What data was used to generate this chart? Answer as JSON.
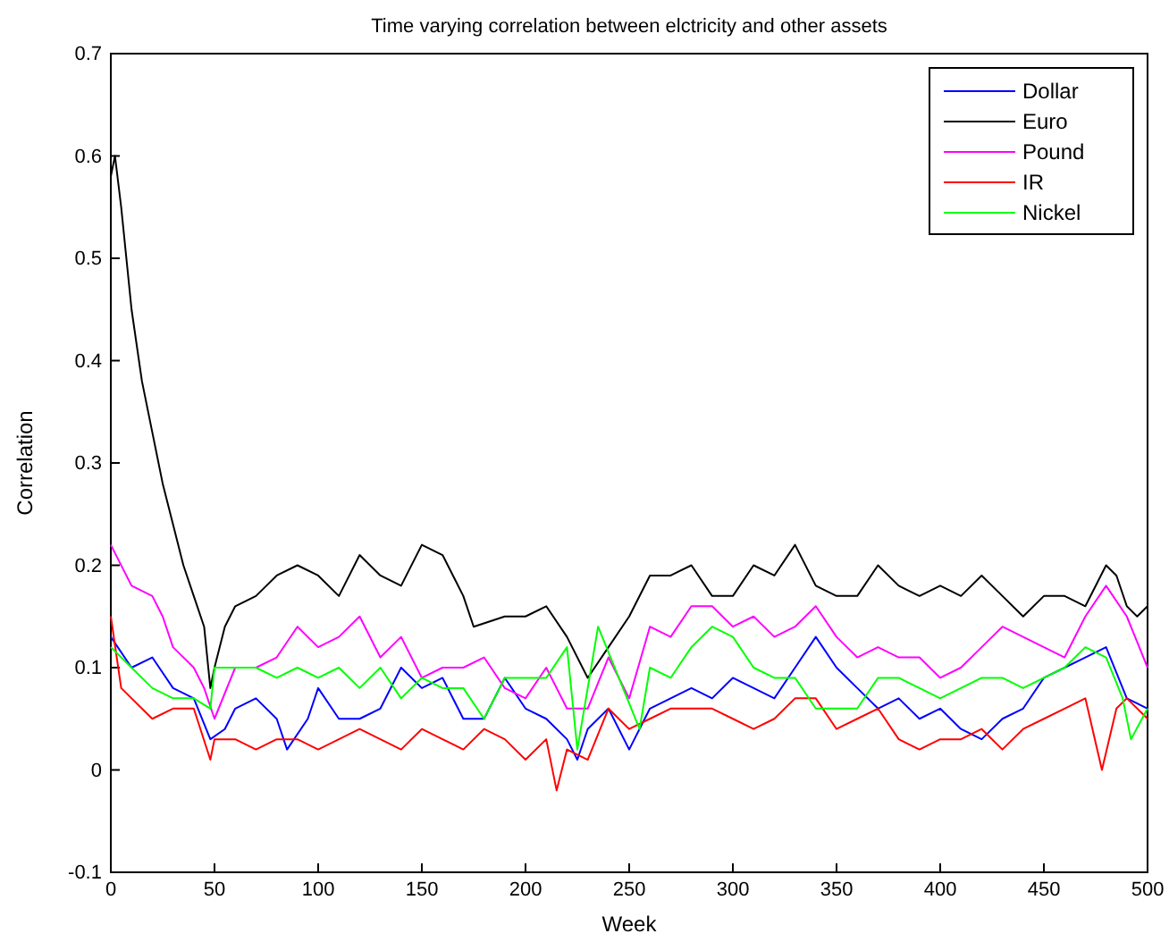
{
  "chart_data": {
    "type": "line",
    "title": "Time varying correlation between elctricity and other assets",
    "xlabel": "Week",
    "ylabel": "Correlation",
    "xlim": [
      0,
      500
    ],
    "xticks": [
      0,
      50,
      100,
      150,
      200,
      250,
      300,
      350,
      400,
      450,
      500
    ],
    "ylim": [
      -0.1,
      0.7
    ],
    "yticks": [
      -0.1,
      0,
      0.1,
      0.2,
      0.3,
      0.4,
      0.5,
      0.6,
      0.7
    ],
    "grid": false,
    "legend": "top right",
    "marker": "none",
    "line_style": "solid",
    "series": [
      {
        "name": "Dollar",
        "color": "#0000ff",
        "x": [
          0,
          10,
          20,
          30,
          40,
          48,
          55,
          60,
          70,
          80,
          85,
          95,
          100,
          110,
          120,
          130,
          140,
          150,
          160,
          170,
          180,
          190,
          200,
          210,
          220,
          225,
          230,
          240,
          250,
          260,
          270,
          280,
          290,
          300,
          310,
          320,
          330,
          340,
          350,
          360,
          370,
          380,
          390,
          400,
          410,
          420,
          430,
          440,
          450,
          460,
          470,
          480,
          490,
          500
        ],
        "values": [
          0.13,
          0.1,
          0.11,
          0.08,
          0.07,
          0.03,
          0.04,
          0.06,
          0.07,
          0.05,
          0.02,
          0.05,
          0.08,
          0.05,
          0.05,
          0.06,
          0.1,
          0.08,
          0.09,
          0.05,
          0.05,
          0.09,
          0.06,
          0.05,
          0.03,
          0.01,
          0.04,
          0.06,
          0.02,
          0.06,
          0.07,
          0.08,
          0.07,
          0.09,
          0.08,
          0.07,
          0.1,
          0.13,
          0.1,
          0.08,
          0.06,
          0.07,
          0.05,
          0.06,
          0.04,
          0.03,
          0.05,
          0.06,
          0.09,
          0.1,
          0.11,
          0.12,
          0.07,
          0.06
        ]
      },
      {
        "name": "Euro",
        "color": "#000000",
        "x": [
          0,
          2,
          5,
          10,
          15,
          20,
          25,
          30,
          35,
          40,
          45,
          48,
          50,
          55,
          60,
          70,
          80,
          90,
          100,
          110,
          120,
          130,
          140,
          150,
          160,
          170,
          175,
          190,
          200,
          210,
          220,
          230,
          240,
          250,
          260,
          270,
          280,
          290,
          300,
          310,
          320,
          330,
          340,
          350,
          360,
          370,
          380,
          390,
          400,
          410,
          420,
          430,
          440,
          450,
          460,
          470,
          480,
          485,
          490,
          495,
          500
        ],
        "values": [
          0.58,
          0.6,
          0.55,
          0.45,
          0.38,
          0.33,
          0.28,
          0.24,
          0.2,
          0.17,
          0.14,
          0.08,
          0.1,
          0.14,
          0.16,
          0.17,
          0.19,
          0.2,
          0.19,
          0.17,
          0.21,
          0.19,
          0.18,
          0.22,
          0.21,
          0.17,
          0.14,
          0.15,
          0.15,
          0.16,
          0.13,
          0.09,
          0.12,
          0.15,
          0.19,
          0.19,
          0.2,
          0.17,
          0.17,
          0.2,
          0.19,
          0.22,
          0.18,
          0.17,
          0.17,
          0.2,
          0.18,
          0.17,
          0.18,
          0.17,
          0.19,
          0.17,
          0.15,
          0.17,
          0.17,
          0.16,
          0.2,
          0.19,
          0.16,
          0.15,
          0.16
        ]
      },
      {
        "name": "Pound",
        "color": "#ff00ff",
        "x": [
          0,
          10,
          20,
          25,
          30,
          40,
          45,
          50,
          60,
          70,
          80,
          90,
          100,
          110,
          120,
          130,
          140,
          150,
          160,
          170,
          180,
          190,
          200,
          210,
          220,
          230,
          240,
          250,
          260,
          270,
          280,
          290,
          300,
          310,
          320,
          330,
          340,
          350,
          360,
          370,
          380,
          390,
          400,
          410,
          420,
          430,
          440,
          450,
          460,
          470,
          480,
          490,
          500
        ],
        "values": [
          0.22,
          0.18,
          0.17,
          0.15,
          0.12,
          0.1,
          0.08,
          0.05,
          0.1,
          0.1,
          0.11,
          0.14,
          0.12,
          0.13,
          0.15,
          0.11,
          0.13,
          0.09,
          0.1,
          0.1,
          0.11,
          0.08,
          0.07,
          0.1,
          0.06,
          0.06,
          0.11,
          0.07,
          0.14,
          0.13,
          0.16,
          0.16,
          0.14,
          0.15,
          0.13,
          0.14,
          0.16,
          0.13,
          0.11,
          0.12,
          0.11,
          0.11,
          0.09,
          0.1,
          0.12,
          0.14,
          0.13,
          0.12,
          0.11,
          0.15,
          0.18,
          0.15,
          0.1
        ]
      },
      {
        "name": "IR",
        "color": "#ff0000",
        "x": [
          0,
          5,
          10,
          20,
          30,
          40,
          48,
          50,
          60,
          70,
          80,
          90,
          100,
          110,
          120,
          130,
          140,
          150,
          160,
          170,
          180,
          190,
          200,
          210,
          215,
          220,
          230,
          240,
          250,
          260,
          270,
          280,
          290,
          300,
          310,
          320,
          330,
          340,
          350,
          360,
          370,
          380,
          390,
          400,
          410,
          420,
          430,
          440,
          450,
          460,
          470,
          478,
          485,
          490,
          500
        ],
        "values": [
          0.15,
          0.08,
          0.07,
          0.05,
          0.06,
          0.06,
          0.01,
          0.03,
          0.03,
          0.02,
          0.03,
          0.03,
          0.02,
          0.03,
          0.04,
          0.03,
          0.02,
          0.04,
          0.03,
          0.02,
          0.04,
          0.03,
          0.01,
          0.03,
          -0.02,
          0.02,
          0.01,
          0.06,
          0.04,
          0.05,
          0.06,
          0.06,
          0.06,
          0.05,
          0.04,
          0.05,
          0.07,
          0.07,
          0.04,
          0.05,
          0.06,
          0.03,
          0.02,
          0.03,
          0.03,
          0.04,
          0.02,
          0.04,
          0.05,
          0.06,
          0.07,
          0,
          0.06,
          0.07,
          0.05
        ]
      },
      {
        "name": "Nickel",
        "color": "#00ff00",
        "x": [
          0,
          10,
          20,
          30,
          40,
          48,
          50,
          60,
          70,
          80,
          90,
          100,
          110,
          120,
          130,
          140,
          150,
          160,
          170,
          180,
          190,
          200,
          210,
          220,
          225,
          235,
          245,
          255,
          260,
          270,
          280,
          290,
          300,
          310,
          320,
          330,
          340,
          350,
          360,
          370,
          380,
          390,
          400,
          410,
          420,
          430,
          440,
          450,
          460,
          470,
          480,
          488,
          492,
          500
        ],
        "values": [
          0.12,
          0.1,
          0.08,
          0.07,
          0.07,
          0.06,
          0.1,
          0.1,
          0.1,
          0.09,
          0.1,
          0.09,
          0.1,
          0.08,
          0.1,
          0.07,
          0.09,
          0.08,
          0.08,
          0.05,
          0.09,
          0.09,
          0.09,
          0.12,
          0.02,
          0.14,
          0.09,
          0.04,
          0.1,
          0.09,
          0.12,
          0.14,
          0.13,
          0.1,
          0.09,
          0.09,
          0.06,
          0.06,
          0.06,
          0.09,
          0.09,
          0.08,
          0.07,
          0.08,
          0.09,
          0.09,
          0.08,
          0.09,
          0.1,
          0.12,
          0.11,
          0.07,
          0.03,
          0.06
        ]
      }
    ]
  }
}
